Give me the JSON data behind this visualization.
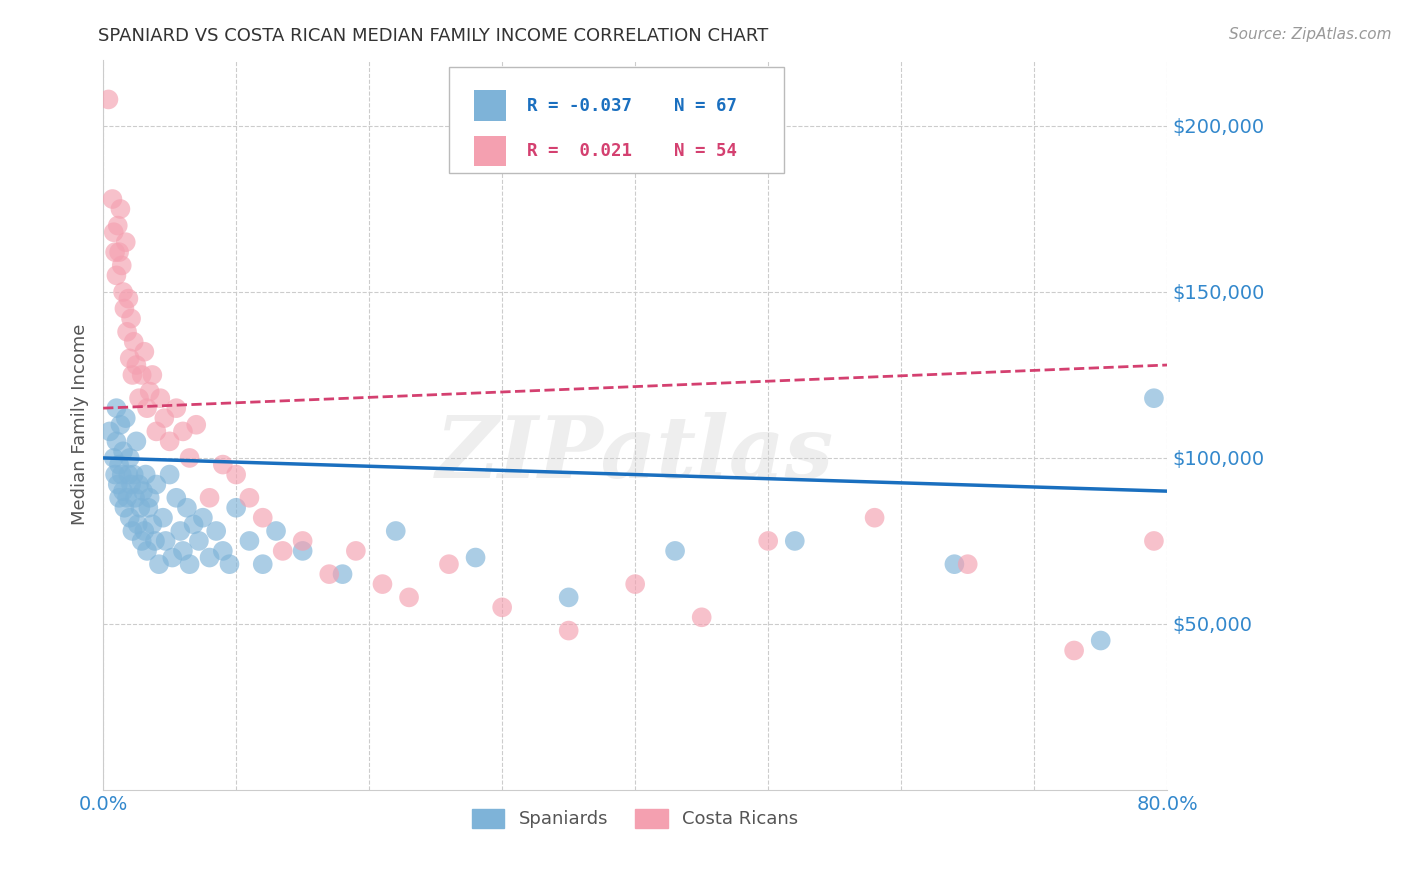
{
  "title": "SPANIARD VS COSTA RICAN MEDIAN FAMILY INCOME CORRELATION CHART",
  "source": "Source: ZipAtlas.com",
  "ylabel": "Median Family Income",
  "watermark": "ZIPatlas",
  "xlim": [
    0.0,
    0.8
  ],
  "ylim": [
    0,
    220000
  ],
  "yticks": [
    50000,
    100000,
    150000,
    200000
  ],
  "ytick_labels": [
    "$50,000",
    "$100,000",
    "$150,000",
    "$200,000"
  ],
  "xtick_labels": [
    "0.0%",
    "80.0%"
  ],
  "legend_blue_R": "-0.037",
  "legend_blue_N": "67",
  "legend_pink_R": "0.021",
  "legend_pink_N": "54",
  "blue_color": "#7EB3D8",
  "pink_color": "#F4A0B0",
  "line_blue_color": "#1A6FBF",
  "line_pink_color": "#D44070",
  "tick_label_color": "#3388CC",
  "background_color": "#FFFFFF",
  "grid_color": "#CCCCCC",
  "title_color": "#333333",
  "blue_scatter_x": [
    0.005,
    0.008,
    0.009,
    0.01,
    0.01,
    0.011,
    0.012,
    0.012,
    0.013,
    0.014,
    0.015,
    0.015,
    0.016,
    0.017,
    0.018,
    0.019,
    0.02,
    0.02,
    0.021,
    0.022,
    0.023,
    0.024,
    0.025,
    0.026,
    0.027,
    0.028,
    0.029,
    0.03,
    0.031,
    0.032,
    0.033,
    0.034,
    0.035,
    0.037,
    0.039,
    0.04,
    0.042,
    0.045,
    0.047,
    0.05,
    0.052,
    0.055,
    0.058,
    0.06,
    0.063,
    0.065,
    0.068,
    0.072,
    0.075,
    0.08,
    0.085,
    0.09,
    0.095,
    0.1,
    0.11,
    0.12,
    0.13,
    0.15,
    0.18,
    0.22,
    0.28,
    0.35,
    0.43,
    0.52,
    0.64,
    0.75,
    0.79
  ],
  "blue_scatter_y": [
    108000,
    100000,
    95000,
    115000,
    105000,
    92000,
    98000,
    88000,
    110000,
    95000,
    102000,
    90000,
    85000,
    112000,
    88000,
    95000,
    82000,
    100000,
    92000,
    78000,
    95000,
    88000,
    105000,
    80000,
    92000,
    85000,
    75000,
    90000,
    78000,
    95000,
    72000,
    85000,
    88000,
    80000,
    75000,
    92000,
    68000,
    82000,
    75000,
    95000,
    70000,
    88000,
    78000,
    72000,
    85000,
    68000,
    80000,
    75000,
    82000,
    70000,
    78000,
    72000,
    68000,
    85000,
    75000,
    68000,
    78000,
    72000,
    65000,
    78000,
    70000,
    58000,
    72000,
    75000,
    68000,
    45000,
    118000
  ],
  "pink_scatter_x": [
    0.004,
    0.007,
    0.008,
    0.009,
    0.01,
    0.011,
    0.012,
    0.013,
    0.014,
    0.015,
    0.016,
    0.017,
    0.018,
    0.019,
    0.02,
    0.021,
    0.022,
    0.023,
    0.025,
    0.027,
    0.029,
    0.031,
    0.033,
    0.035,
    0.037,
    0.04,
    0.043,
    0.046,
    0.05,
    0.055,
    0.06,
    0.065,
    0.07,
    0.08,
    0.09,
    0.1,
    0.11,
    0.12,
    0.135,
    0.15,
    0.17,
    0.19,
    0.21,
    0.23,
    0.26,
    0.3,
    0.35,
    0.4,
    0.45,
    0.5,
    0.58,
    0.65,
    0.73,
    0.79
  ],
  "pink_scatter_y": [
    208000,
    178000,
    168000,
    162000,
    155000,
    170000,
    162000,
    175000,
    158000,
    150000,
    145000,
    165000,
    138000,
    148000,
    130000,
    142000,
    125000,
    135000,
    128000,
    118000,
    125000,
    132000,
    115000,
    120000,
    125000,
    108000,
    118000,
    112000,
    105000,
    115000,
    108000,
    100000,
    110000,
    88000,
    98000,
    95000,
    88000,
    82000,
    72000,
    75000,
    65000,
    72000,
    62000,
    58000,
    68000,
    55000,
    48000,
    62000,
    52000,
    75000,
    82000,
    68000,
    42000,
    75000
  ],
  "blue_line_x": [
    0.0,
    0.8
  ],
  "blue_line_y": [
    100000,
    90000
  ],
  "pink_line_x": [
    0.0,
    0.8
  ],
  "pink_line_y": [
    115000,
    128000
  ]
}
